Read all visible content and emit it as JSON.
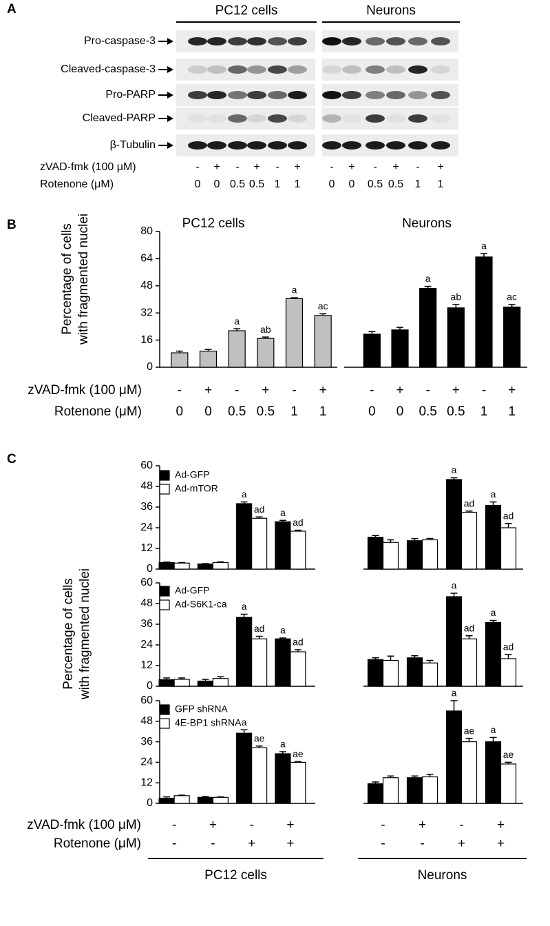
{
  "panel_labels": [
    "A",
    "B",
    "C"
  ],
  "blot": {
    "groups": [
      "PC12 cells",
      "Neurons"
    ],
    "rows": [
      "Pro-caspase-3",
      "Cleaved-caspase-3",
      "Pro-PARP",
      "Cleaved-PARP",
      "β-Tubulin"
    ],
    "treatments": [
      {
        "label": "zVAD-fmk (100 μM)",
        "values": [
          "-",
          "+",
          "-",
          "+",
          "-",
          "+"
        ]
      },
      {
        "label": "Rotenone (μM)",
        "values": [
          "0",
          "0",
          "0.5",
          "0.5",
          "1",
          "1"
        ]
      }
    ]
  },
  "chart_data": [
    {
      "type": "bar",
      "title": "PC12 cells",
      "ylabel": [
        "Percentage of cells",
        "with fragmented nuclei"
      ],
      "values": [
        8.5,
        9.5,
        21.5,
        17,
        40.5,
        30.5
      ],
      "errors": [
        1,
        1,
        1.2,
        0.8,
        0.5,
        1
      ],
      "annotations": [
        null,
        null,
        "a",
        "ab",
        "a",
        "ac"
      ],
      "color": "#c0c0c0",
      "ylim": [
        0,
        80
      ],
      "yticks": [
        0,
        16,
        32,
        48,
        64,
        80
      ],
      "treatments": [
        {
          "label": "zVAD-fmk (100 μM)",
          "values": [
            "-",
            "+",
            "-",
            "+",
            "-",
            "+"
          ]
        },
        {
          "label": "Rotenone (μM)",
          "values": [
            "0",
            "0",
            "0.5",
            "0.5",
            "1",
            "1"
          ]
        }
      ]
    },
    {
      "type": "bar",
      "title": "Neurons",
      "values": [
        19.5,
        22,
        46.5,
        35,
        65,
        35.5
      ],
      "errors": [
        1.5,
        1.5,
        1.2,
        2,
        2,
        1.5
      ],
      "annotations": [
        null,
        null,
        "a",
        "ab",
        "a",
        "ac"
      ],
      "color": "#000000",
      "ylim": [
        0,
        80
      ],
      "treatments": [
        {
          "values": [
            "-",
            "+",
            "-",
            "+",
            "-",
            "+"
          ]
        },
        {
          "values": [
            "0",
            "0",
            "0.5",
            "0.5",
            "1",
            "1"
          ]
        }
      ]
    },
    {
      "type": "bar",
      "ylim": [
        0,
        60
      ],
      "yticks": [
        0,
        12,
        24,
        36,
        48,
        60
      ],
      "series": [
        {
          "name": "Ad-GFP",
          "color": "#000000",
          "values": [
            3.8,
            3,
            38,
            27.5
          ],
          "errors": [
            0.3,
            0.2,
            1,
            0.8
          ],
          "annotations": [
            null,
            null,
            "a",
            "a"
          ]
        },
        {
          "name": "Ad-mTOR",
          "color": "#ffffff",
          "values": [
            3.5,
            3.8,
            29.5,
            22
          ],
          "errors": [
            0.3,
            0.4,
            0.8,
            0.6
          ],
          "annotations": [
            null,
            null,
            "ad",
            "ad"
          ]
        }
      ]
    },
    {
      "type": "bar",
      "ylim": [
        0,
        60
      ],
      "series": [
        {
          "color": "#000000",
          "values": [
            18.5,
            16.5,
            52,
            37
          ],
          "errors": [
            1,
            1.2,
            1,
            2
          ],
          "annotations": [
            null,
            null,
            "a",
            "a"
          ]
        },
        {
          "color": "#ffffff",
          "values": [
            15.5,
            17,
            33,
            24
          ],
          "errors": [
            1.5,
            0.8,
            0.7,
            2.5
          ],
          "annotations": [
            null,
            null,
            "ad",
            "ad"
          ]
        }
      ]
    },
    {
      "type": "bar",
      "ylim": [
        0,
        60
      ],
      "yticks": [
        0,
        12,
        24,
        36,
        48,
        60
      ],
      "series": [
        {
          "name": "Ad-GFP",
          "color": "#000000",
          "values": [
            3.8,
            3,
            40,
            27.5
          ],
          "errors": [
            1,
            1,
            1.8,
            0.5
          ],
          "annotations": [
            null,
            null,
            "a",
            "a"
          ]
        },
        {
          "name": "Ad-S6K1-ca",
          "color": "#ffffff",
          "values": [
            4,
            4.5,
            27.5,
            20
          ],
          "errors": [
            0.8,
            1,
            1.5,
            1.2
          ],
          "annotations": [
            null,
            null,
            "ad",
            "ad"
          ]
        }
      ]
    },
    {
      "type": "bar",
      "ylim": [
        0,
        60
      ],
      "series": [
        {
          "color": "#000000",
          "values": [
            15.5,
            16.5,
            52,
            37
          ],
          "errors": [
            1,
            1.2,
            2,
            1.2
          ],
          "annotations": [
            null,
            null,
            "a",
            "a"
          ]
        },
        {
          "color": "#ffffff",
          "values": [
            15,
            13.5,
            27.5,
            16
          ],
          "errors": [
            2.5,
            1.5,
            1.8,
            2.5
          ],
          "annotations": [
            null,
            null,
            "ad",
            "ad"
          ]
        }
      ]
    },
    {
      "type": "bar",
      "ylim": [
        0,
        60
      ],
      "yticks": [
        0,
        12,
        24,
        36,
        48,
        60
      ],
      "series": [
        {
          "name": "GFP shRNA",
          "color": "#000000",
          "values": [
            3,
            3.5,
            41,
            29
          ],
          "errors": [
            0.8,
            0.5,
            2,
            1.2
          ],
          "annotations": [
            null,
            null,
            "a",
            "a"
          ]
        },
        {
          "name": "4E-BP1 shRNA",
          "color": "#ffffff",
          "values": [
            4.5,
            3.5,
            32.5,
            24
          ],
          "errors": [
            0.3,
            0.3,
            1,
            0.4
          ],
          "annotations": [
            null,
            null,
            "ae",
            "ae"
          ]
        }
      ]
    },
    {
      "type": "bar",
      "ylim": [
        0,
        60
      ],
      "series": [
        {
          "color": "#000000",
          "values": [
            11.5,
            15,
            54,
            36
          ],
          "errors": [
            1,
            1,
            6,
            2.5
          ],
          "annotations": [
            null,
            null,
            "a",
            "a"
          ]
        },
        {
          "color": "#ffffff",
          "values": [
            15,
            15.5,
            36,
            23
          ],
          "errors": [
            1,
            1.5,
            2,
            1
          ],
          "annotations": [
            null,
            null,
            "ae",
            "ae"
          ]
        }
      ]
    }
  ],
  "panel_c": {
    "ylabel": [
      "Percentage of cells",
      "with fragmented nuclei"
    ],
    "treatments": [
      {
        "label": "zVAD-fmk (100 μM)",
        "values": [
          "-",
          "+",
          "-",
          "+"
        ]
      },
      {
        "label": "Rotenone (μM)",
        "values": [
          "-",
          "-",
          "+",
          "+"
        ]
      }
    ],
    "groups": [
      "PC12 cells",
      "Neurons"
    ]
  }
}
